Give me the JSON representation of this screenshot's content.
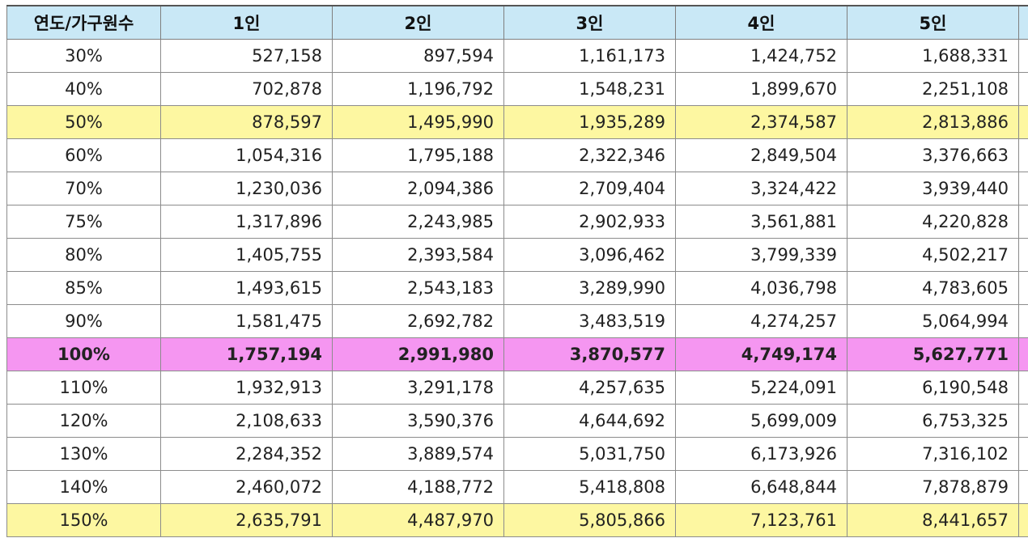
{
  "header": {
    "corner": "연도/가구원수",
    "cols": [
      "1인",
      "2인",
      "3인",
      "4인",
      "5인"
    ]
  },
  "rows": [
    {
      "pct": "30%",
      "vals": [
        "527,158",
        "897,594",
        "1,161,173",
        "1,424,752",
        "1,688,331"
      ],
      "hl": ""
    },
    {
      "pct": "40%",
      "vals": [
        "702,878",
        "1,196,792",
        "1,548,231",
        "1,899,670",
        "2,251,108"
      ],
      "hl": ""
    },
    {
      "pct": "50%",
      "vals": [
        "878,597",
        "1,495,990",
        "1,935,289",
        "2,374,587",
        "2,813,886"
      ],
      "hl": "yellow"
    },
    {
      "pct": "60%",
      "vals": [
        "1,054,316",
        "1,795,188",
        "2,322,346",
        "2,849,504",
        "3,376,663"
      ],
      "hl": ""
    },
    {
      "pct": "70%",
      "vals": [
        "1,230,036",
        "2,094,386",
        "2,709,404",
        "3,324,422",
        "3,939,440"
      ],
      "hl": ""
    },
    {
      "pct": "75%",
      "vals": [
        "1,317,896",
        "2,243,985",
        "2,902,933",
        "3,561,881",
        "4,220,828"
      ],
      "hl": ""
    },
    {
      "pct": "80%",
      "vals": [
        "1,405,755",
        "2,393,584",
        "3,096,462",
        "3,799,339",
        "4,502,217"
      ],
      "hl": ""
    },
    {
      "pct": "85%",
      "vals": [
        "1,493,615",
        "2,543,183",
        "3,289,990",
        "4,036,798",
        "4,783,605"
      ],
      "hl": ""
    },
    {
      "pct": "90%",
      "vals": [
        "1,581,475",
        "2,692,782",
        "3,483,519",
        "4,274,257",
        "5,064,994"
      ],
      "hl": ""
    },
    {
      "pct": "100%",
      "vals": [
        "1,757,194",
        "2,991,980",
        "3,870,577",
        "4,749,174",
        "5,627,771"
      ],
      "hl": "pink"
    },
    {
      "pct": "110%",
      "vals": [
        "1,932,913",
        "3,291,178",
        "4,257,635",
        "5,224,091",
        "6,190,548"
      ],
      "hl": ""
    },
    {
      "pct": "120%",
      "vals": [
        "2,108,633",
        "3,590,376",
        "4,644,692",
        "5,699,009",
        "6,753,325"
      ],
      "hl": ""
    },
    {
      "pct": "130%",
      "vals": [
        "2,284,352",
        "3,889,574",
        "5,031,750",
        "6,173,926",
        "7,316,102"
      ],
      "hl": ""
    },
    {
      "pct": "140%",
      "vals": [
        "2,460,072",
        "4,188,772",
        "5,418,808",
        "6,648,844",
        "7,878,879"
      ],
      "hl": ""
    },
    {
      "pct": "150%",
      "vals": [
        "2,635,791",
        "4,487,970",
        "5,805,866",
        "7,123,761",
        "8,441,657"
      ],
      "hl": "yellow"
    }
  ],
  "colors": {
    "header_bg": "#c9e8f6",
    "highlight_yellow": "#fdf7a1",
    "highlight_pink": "#f596f1",
    "grid": "#8c8c8c"
  }
}
